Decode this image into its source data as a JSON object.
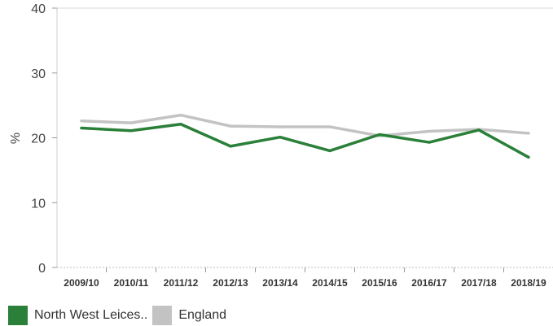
{
  "chart_data": {
    "type": "line",
    "ylabel": "%",
    "xlabel": "",
    "ylim": [
      0,
      40
    ],
    "yticks": [
      0,
      10,
      20,
      30,
      40
    ],
    "categories": [
      "2009/10",
      "2010/11",
      "2011/12",
      "2012/13",
      "2013/14",
      "2014/15",
      "2015/16",
      "2016/17",
      "2017/18",
      "2018/19"
    ],
    "series": [
      {
        "name": "England",
        "color": "#c3c3c3",
        "values": [
          22.6,
          22.3,
          23.5,
          21.8,
          21.7,
          21.7,
          20.3,
          21.0,
          21.3,
          20.7
        ]
      },
      {
        "name": "North West Leices..",
        "color": "#2a7f39",
        "values": [
          21.5,
          21.1,
          22.1,
          18.7,
          20.1,
          18.0,
          20.5,
          19.3,
          21.2,
          17.0
        ]
      }
    ],
    "legend": {
      "placement": "bottom-left",
      "order": [
        "North West Leices..",
        "England"
      ]
    }
  }
}
